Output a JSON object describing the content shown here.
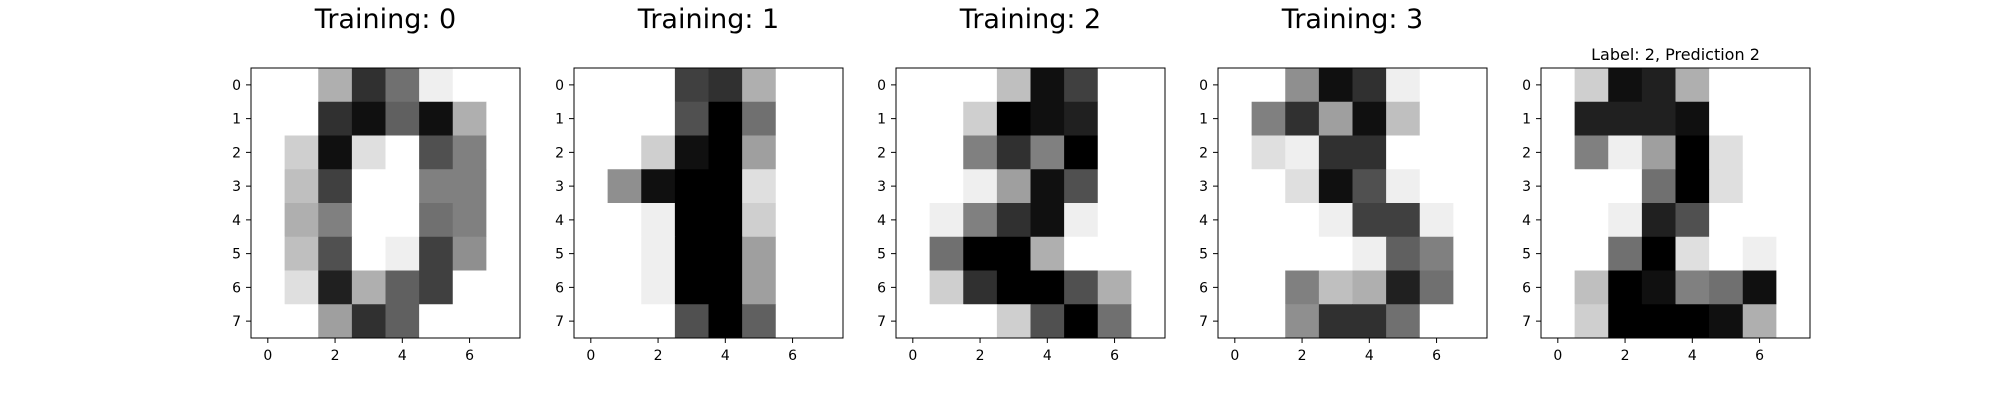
{
  "chart_data": [
    {
      "type": "heatmap",
      "title": "Training: 0",
      "title_size": "large",
      "colormap": "gray",
      "xticks": [
        0,
        2,
        4,
        6
      ],
      "yticks": [
        0,
        1,
        2,
        3,
        4,
        5,
        6,
        7
      ],
      "xlim": [
        -0.5,
        7.5
      ],
      "ylim": [
        7.5,
        -0.5
      ],
      "values": [
        [
          0,
          0,
          5,
          13,
          9,
          1,
          0,
          0
        ],
        [
          0,
          0,
          13,
          15,
          10,
          15,
          5,
          0
        ],
        [
          0,
          3,
          15,
          2,
          0,
          11,
          8,
          0
        ],
        [
          0,
          4,
          12,
          0,
          0,
          8,
          8,
          0
        ],
        [
          0,
          5,
          8,
          0,
          0,
          9,
          8,
          0
        ],
        [
          0,
          4,
          11,
          0,
          1,
          12,
          7,
          0
        ],
        [
          0,
          2,
          14,
          5,
          10,
          12,
          0,
          0
        ],
        [
          0,
          0,
          6,
          13,
          10,
          0,
          0,
          0
        ]
      ]
    },
    {
      "type": "heatmap",
      "title": "Training: 1",
      "title_size": "large",
      "colormap": "gray",
      "xticks": [
        0,
        2,
        4,
        6
      ],
      "yticks": [
        0,
        1,
        2,
        3,
        4,
        5,
        6,
        7
      ],
      "xlim": [
        -0.5,
        7.5
      ],
      "ylim": [
        7.5,
        -0.5
      ],
      "values": [
        [
          0,
          0,
          0,
          12,
          13,
          5,
          0,
          0
        ],
        [
          0,
          0,
          0,
          11,
          16,
          9,
          0,
          0
        ],
        [
          0,
          0,
          3,
          15,
          16,
          6,
          0,
          0
        ],
        [
          0,
          7,
          15,
          16,
          16,
          2,
          0,
          0
        ],
        [
          0,
          0,
          1,
          16,
          16,
          3,
          0,
          0
        ],
        [
          0,
          0,
          1,
          16,
          16,
          6,
          0,
          0
        ],
        [
          0,
          0,
          1,
          16,
          16,
          6,
          0,
          0
        ],
        [
          0,
          0,
          0,
          11,
          16,
          10,
          0,
          0
        ]
      ]
    },
    {
      "type": "heatmap",
      "title": "Training: 2",
      "title_size": "large",
      "colormap": "gray",
      "xticks": [
        0,
        2,
        4,
        6
      ],
      "yticks": [
        0,
        1,
        2,
        3,
        4,
        5,
        6,
        7
      ],
      "xlim": [
        -0.5,
        7.5
      ],
      "ylim": [
        7.5,
        -0.5
      ],
      "values": [
        [
          0,
          0,
          0,
          4,
          15,
          12,
          0,
          0
        ],
        [
          0,
          0,
          3,
          16,
          15,
          14,
          0,
          0
        ],
        [
          0,
          0,
          8,
          13,
          8,
          16,
          0,
          0
        ],
        [
          0,
          0,
          1,
          6,
          15,
          11,
          0,
          0
        ],
        [
          0,
          1,
          8,
          13,
          15,
          1,
          0,
          0
        ],
        [
          0,
          9,
          16,
          16,
          5,
          0,
          0,
          0
        ],
        [
          0,
          3,
          13,
          16,
          16,
          11,
          5,
          0
        ],
        [
          0,
          0,
          0,
          3,
          11,
          16,
          9,
          0
        ]
      ]
    },
    {
      "type": "heatmap",
      "title": "Training: 3",
      "title_size": "large",
      "colormap": "gray",
      "xticks": [
        0,
        2,
        4,
        6
      ],
      "yticks": [
        0,
        1,
        2,
        3,
        4,
        5,
        6,
        7
      ],
      "xlim": [
        -0.5,
        7.5
      ],
      "ylim": [
        7.5,
        -0.5
      ],
      "values": [
        [
          0,
          0,
          7,
          15,
          13,
          1,
          0,
          0
        ],
        [
          0,
          8,
          13,
          6,
          15,
          4,
          0,
          0
        ],
        [
          0,
          2,
          1,
          13,
          13,
          0,
          0,
          0
        ],
        [
          0,
          0,
          2,
          15,
          11,
          1,
          0,
          0
        ],
        [
          0,
          0,
          0,
          1,
          12,
          12,
          1,
          0
        ],
        [
          0,
          0,
          0,
          0,
          1,
          10,
          8,
          0
        ],
        [
          0,
          0,
          8,
          4,
          5,
          14,
          9,
          0
        ],
        [
          0,
          0,
          7,
          13,
          13,
          9,
          0,
          0
        ]
      ]
    },
    {
      "type": "heatmap",
      "title": "Label: 2, Prediction 2",
      "title_size": "small",
      "colormap": "gray",
      "xticks": [
        0,
        2,
        4,
        6
      ],
      "yticks": [
        0,
        1,
        2,
        3,
        4,
        5,
        6,
        7
      ],
      "xlim": [
        -0.5,
        7.5
      ],
      "ylim": [
        7.5,
        -0.5
      ],
      "values": [
        [
          0,
          3,
          15,
          14,
          5,
          0,
          0,
          0
        ],
        [
          0,
          14,
          14,
          14,
          15,
          0,
          0,
          0
        ],
        [
          0,
          8,
          1,
          6,
          16,
          2,
          0,
          0
        ],
        [
          0,
          0,
          0,
          9,
          16,
          2,
          0,
          0
        ],
        [
          0,
          0,
          1,
          14,
          11,
          0,
          0,
          0
        ],
        [
          0,
          0,
          9,
          16,
          2,
          0,
          1,
          0
        ],
        [
          0,
          4,
          16,
          15,
          8,
          9,
          15,
          0
        ],
        [
          0,
          3,
          16,
          16,
          16,
          15,
          5,
          0
        ]
      ]
    }
  ]
}
